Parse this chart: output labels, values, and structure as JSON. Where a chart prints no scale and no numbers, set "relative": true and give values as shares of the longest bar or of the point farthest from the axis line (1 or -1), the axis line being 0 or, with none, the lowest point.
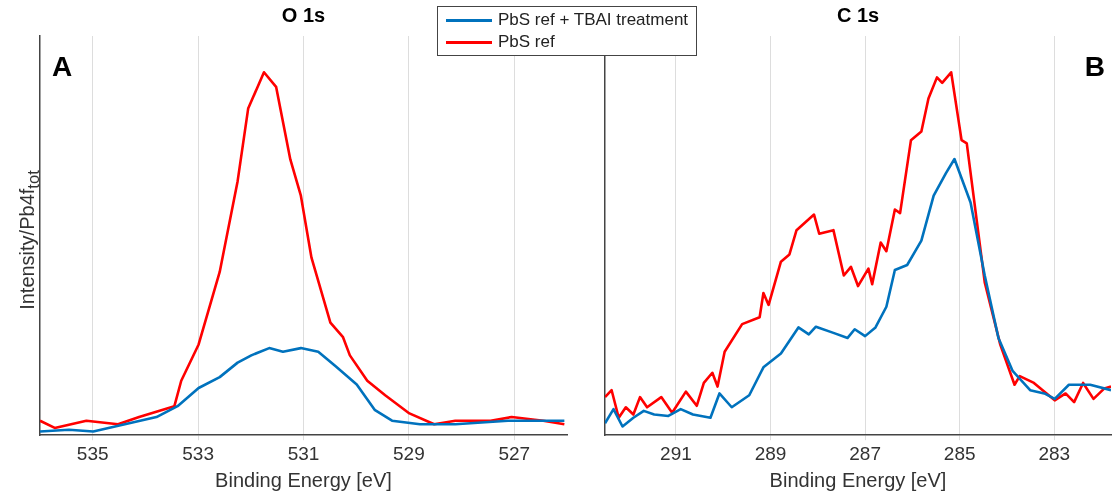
{
  "chart_data": [
    {
      "type": "line",
      "title": "O 1s",
      "xlabel": "Binding Energy [eV]",
      "ylabel": "Intensity/Pb4f$_{tot}$",
      "annotations": [
        "A"
      ],
      "relative": true,
      "xlim": [
        536,
        526
      ],
      "xticks": [
        535,
        533,
        531,
        529,
        527
      ],
      "grid": "x",
      "tick_labels": "x",
      "legend": "top right",
      "series": [
        {
          "name": "PbS ref + TBAI treatment",
          "color": "#0072bd",
          "x": [
            536,
            535.45,
            534.99,
            534.39,
            533.79,
            533.39,
            532.99,
            532.59,
            532.25,
            531.99,
            531.65,
            531.39,
            531.05,
            530.72,
            530.39,
            529.99,
            529.65,
            529.32,
            528.79,
            528.12,
            527.12,
            526.45,
            526.05
          ],
          "values": [
            0.01,
            0.015,
            0.01,
            0.03,
            0.05,
            0.08,
            0.13,
            0.16,
            0.2,
            0.22,
            0.24,
            0.23,
            0.24,
            0.23,
            0.19,
            0.14,
            0.07,
            0.04,
            0.03,
            0.03,
            0.04,
            0.04,
            0.04
          ]
        },
        {
          "name": "PbS ref",
          "color": "#ff0000",
          "x": [
            536,
            535.72,
            535.12,
            534.52,
            534.12,
            533.45,
            533.32,
            532.99,
            532.59,
            532.25,
            532.05,
            531.75,
            531.52,
            531.25,
            531.05,
            530.85,
            530.49,
            530.25,
            530.12,
            529.79,
            529.45,
            528.99,
            528.52,
            528.12,
            527.45,
            527.05,
            526.45,
            526.05
          ],
          "values": [
            0.04,
            0.02,
            0.04,
            0.03,
            0.05,
            0.08,
            0.15,
            0.25,
            0.45,
            0.7,
            0.9,
            1,
            0.96,
            0.76,
            0.66,
            0.49,
            0.31,
            0.27,
            0.22,
            0.15,
            0.11,
            0.06,
            0.03,
            0.04,
            0.04,
            0.05,
            0.04,
            0.03
          ]
        }
      ]
    },
    {
      "type": "line",
      "title": "C 1s",
      "xlabel": "Binding Energy [eV]",
      "annotations": [
        "B"
      ],
      "relative": true,
      "xlim": [
        292.5,
        281.8
      ],
      "xticks": [
        291,
        289,
        287,
        285,
        283
      ],
      "grid": "x",
      "tick_labels": "x",
      "series": [
        {
          "color": "#0072bd",
          "x": [
            292.5,
            292.32,
            292.13,
            291.9,
            291.68,
            291.46,
            291.16,
            290.9,
            290.64,
            290.27,
            290.08,
            289.82,
            289.45,
            289.15,
            288.78,
            288.41,
            288.19,
            288.04,
            287.67,
            287.37,
            287.22,
            287.0,
            286.78,
            286.55,
            286.37,
            286.11,
            285.81,
            285.55,
            285.29,
            285.11,
            284.77,
            284.47,
            284.18,
            283.88,
            283.51,
            283.21,
            282.99,
            282.69,
            282.24,
            281.8
          ],
          "values": [
            0.033,
            0.072,
            0.024,
            0.048,
            0.067,
            0.057,
            0.053,
            0.072,
            0.057,
            0.048,
            0.115,
            0.077,
            0.11,
            0.187,
            0.225,
            0.297,
            0.278,
            0.299,
            0.282,
            0.268,
            0.292,
            0.273,
            0.297,
            0.354,
            0.455,
            0.469,
            0.536,
            0.66,
            0.722,
            0.761,
            0.641,
            0.44,
            0.268,
            0.177,
            0.124,
            0.115,
            0.1,
            0.139,
            0.139,
            0.124
          ]
        },
        {
          "color": "#ff0000",
          "x": [
            292.5,
            292.36,
            292.21,
            292.06,
            291.9,
            291.76,
            291.61,
            291.31,
            291.08,
            290.79,
            290.56,
            290.41,
            290.23,
            290.12,
            289.97,
            289.6,
            289.23,
            289.15,
            289.04,
            288.78,
            288.6,
            288.45,
            288.08,
            287.97,
            287.67,
            287.45,
            287.3,
            287.15,
            286.93,
            286.85,
            286.67,
            286.55,
            286.37,
            286.26,
            286.03,
            285.81,
            285.66,
            285.48,
            285.37,
            285.18,
            284.96,
            284.85,
            284.47,
            284.14,
            283.84,
            283.73,
            283.43,
            282.99,
            282.76,
            282.58,
            282.39,
            282.17,
            281.94,
            281.8
          ],
          "values": [
            0.105,
            0.124,
            0.048,
            0.077,
            0.057,
            0.105,
            0.077,
            0.105,
            0.062,
            0.12,
            0.081,
            0.144,
            0.172,
            0.134,
            0.23,
            0.306,
            0.325,
            0.392,
            0.359,
            0.478,
            0.498,
            0.565,
            0.608,
            0.555,
            0.565,
            0.44,
            0.464,
            0.411,
            0.459,
            0.416,
            0.531,
            0.507,
            0.622,
            0.612,
            0.813,
            0.837,
            0.928,
            0.986,
            0.971,
            1,
            0.813,
            0.804,
            0.421,
            0.249,
            0.139,
            0.163,
            0.144,
            0.096,
            0.115,
            0.091,
            0.144,
            0.1,
            0.129,
            0.134
          ]
        }
      ]
    }
  ]
}
